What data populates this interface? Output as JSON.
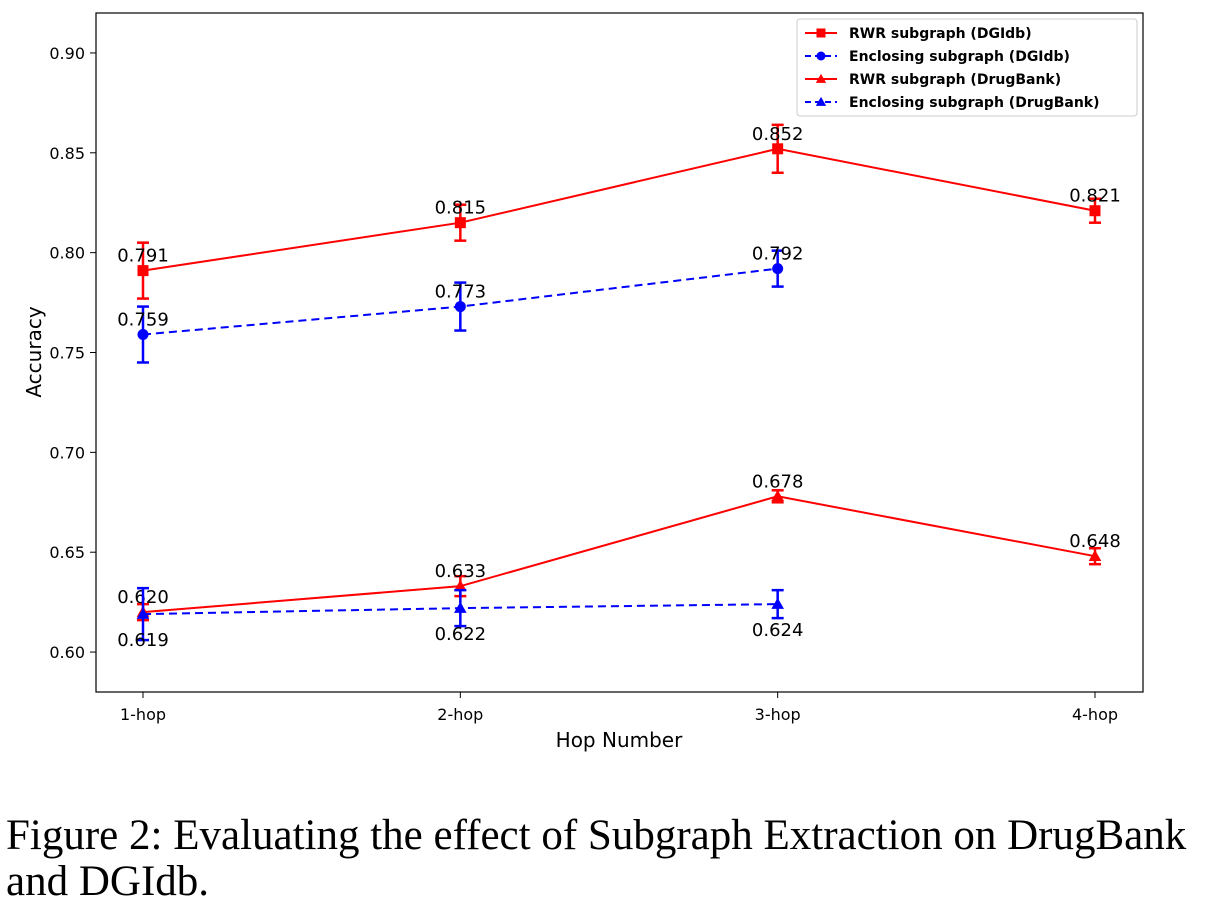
{
  "caption": "Figure 2: Evaluating the effect of Subgraph Extraction on DrugBank and DGIdb.",
  "chart_data": {
    "type": "line",
    "title": "",
    "xlabel": "Hop Number",
    "ylabel": "Accuracy",
    "categories": [
      "1-hop",
      "2-hop",
      "3-hop",
      "4-hop"
    ],
    "ylim": [
      0.58,
      0.92
    ],
    "yticks": [
      0.6,
      0.65,
      0.7,
      0.75,
      0.8,
      0.85,
      0.9
    ],
    "ytick_labels": [
      "0.60",
      "0.65",
      "0.70",
      "0.75",
      "0.80",
      "0.85",
      "0.90"
    ],
    "grid": false,
    "legend_position": "top-right",
    "series": [
      {
        "name": "RWR subgraph (DGIdb)",
        "color": "#ff0000",
        "marker": "square",
        "linestyle": "solid",
        "values": [
          0.791,
          0.815,
          0.852,
          0.821
        ],
        "err_low": [
          0.777,
          0.806,
          0.84,
          0.815
        ],
        "err_high": [
          0.805,
          0.824,
          0.864,
          0.827
        ],
        "labels": [
          "0.791",
          "0.815",
          "0.852",
          "0.821"
        ],
        "label_pos": "above"
      },
      {
        "name": "Enclosing subgraph (DGIdb)",
        "color": "#0000ff",
        "marker": "circle",
        "linestyle": "dashed",
        "values": [
          0.759,
          0.773,
          0.792,
          null
        ],
        "err_low": [
          0.745,
          0.761,
          0.783,
          null
        ],
        "err_high": [
          0.773,
          0.785,
          0.801,
          null
        ],
        "labels": [
          "0.759",
          "0.773",
          "0.792",
          null
        ],
        "label_pos": "above"
      },
      {
        "name": "RWR subgraph (DrugBank)",
        "color": "#ff0000",
        "marker": "triangle",
        "linestyle": "solid",
        "values": [
          0.62,
          0.633,
          0.678,
          0.648
        ],
        "err_low": [
          0.616,
          0.628,
          0.675,
          0.644
        ],
        "err_high": [
          0.624,
          0.638,
          0.681,
          0.652
        ],
        "labels": [
          "0.620",
          "0.633",
          "0.678",
          "0.648"
        ],
        "label_pos": "above"
      },
      {
        "name": "Enclosing subgraph (DrugBank)",
        "color": "#0000ff",
        "marker": "triangle",
        "linestyle": "dashed",
        "values": [
          0.619,
          0.622,
          0.624,
          null
        ],
        "err_low": [
          0.606,
          0.613,
          0.617,
          null
        ],
        "err_high": [
          0.632,
          0.631,
          0.631,
          null
        ],
        "labels": [
          "0.619",
          "0.622",
          "0.624",
          null
        ],
        "label_pos": "below"
      }
    ]
  }
}
